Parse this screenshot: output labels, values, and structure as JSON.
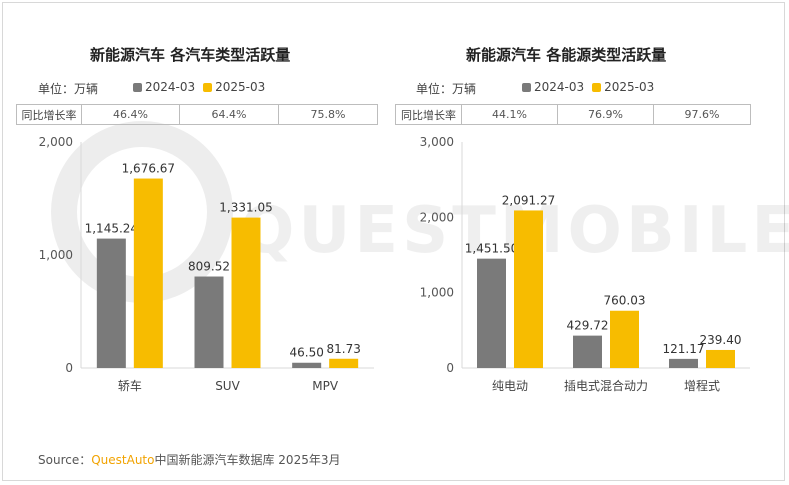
{
  "watermark": "QUESTMOBILE",
  "source": {
    "label": "Source：",
    "brand": "QuestAuto",
    "text": "中国新能源汽车数据库 2025年3月"
  },
  "legend": {
    "series_a": "2024-03",
    "series_b": "2025-03"
  },
  "colors": {
    "series_a": "#7a7a7a",
    "series_b": "#f7bc00"
  },
  "left": {
    "title": "新能源汽车 各汽车类型活跃量",
    "unit": "单位：万辆",
    "growth_label": "同比增长率",
    "growth": [
      "46.4%",
      "64.4%",
      "75.8%"
    ]
  },
  "right": {
    "title": "新能源汽车 各能源类型活跃量",
    "unit": "单位：万辆",
    "growth_label": "同比增长率",
    "growth": [
      "44.1%",
      "76.9%",
      "97.6%"
    ]
  },
  "chart_data": [
    {
      "type": "bar",
      "title": "新能源汽车 各汽车类型活跃量",
      "categories": [
        "轿车",
        "SUV",
        "MPV"
      ],
      "series": [
        {
          "name": "2024-03",
          "values": [
            1145.24,
            809.52,
            46.5
          ],
          "labels": [
            "1,145.24",
            "809.52",
            "46.50"
          ]
        },
        {
          "name": "2025-03",
          "values": [
            1676.67,
            1331.05,
            81.73
          ],
          "labels": [
            "1,676.67",
            "1,331.05",
            "81.73"
          ]
        }
      ],
      "ylim": [
        0,
        2000
      ],
      "yticks": [
        0,
        1000,
        2000
      ],
      "ytick_labels": [
        "0",
        "1,000",
        "2,000"
      ],
      "ylabel": "万辆"
    },
    {
      "type": "bar",
      "title": "新能源汽车 各能源类型活跃量",
      "categories": [
        "纯电动",
        "插电式混合动力",
        "增程式"
      ],
      "series": [
        {
          "name": "2024-03",
          "values": [
            1451.5,
            429.72,
            121.17
          ],
          "labels": [
            "1,451.50",
            "429.72",
            "121.17"
          ]
        },
        {
          "name": "2025-03",
          "values": [
            2091.27,
            760.03,
            239.4
          ],
          "labels": [
            "2,091.27",
            "760.03",
            "239.40"
          ]
        }
      ],
      "ylim": [
        0,
        3000
      ],
      "yticks": [
        0,
        1000,
        2000,
        3000
      ],
      "ytick_labels": [
        "0",
        "1,000",
        "2,000",
        "3,000"
      ],
      "ylabel": "万辆"
    }
  ]
}
